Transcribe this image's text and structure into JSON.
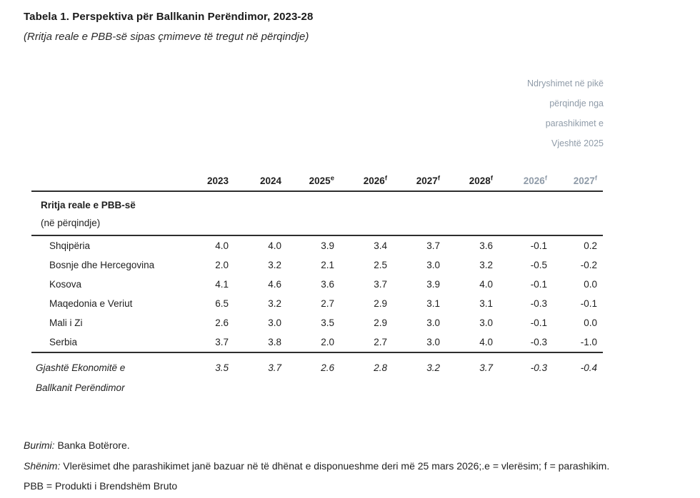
{
  "title": "Tabela 1. Perspektiva për Ballkanin Perëndimor, 2023-28",
  "subtitle": "(Rritja reale e PBB-së sipas çmimeve të tregut në përqindje)",
  "side_note": {
    "line1": "Ndryshimet në pikë",
    "line2": "përqindje nga",
    "line3": "parashikimet e",
    "line4": "Vjeshtë 2025"
  },
  "table": {
    "columns": [
      {
        "label": "2023",
        "sup": ""
      },
      {
        "label": "2024",
        "sup": ""
      },
      {
        "label": "2025",
        "sup": "e"
      },
      {
        "label": "2026",
        "sup": "f"
      },
      {
        "label": "2027",
        "sup": "f"
      },
      {
        "label": "2028",
        "sup": "f"
      },
      {
        "label": "2026",
        "sup": "f"
      },
      {
        "label": "2027",
        "sup": "f"
      }
    ],
    "section": {
      "line1": "Rritja reale e PBB-së",
      "line2": "(në përqindje)"
    },
    "rows": [
      {
        "label": "Shqipëria",
        "values": [
          "4.0",
          "4.0",
          "3.9",
          "3.4",
          "3.7",
          "3.6",
          "-0.1",
          "0.2"
        ]
      },
      {
        "label": "Bosnje dhe Hercegovina",
        "values": [
          "2.0",
          "3.2",
          "2.1",
          "2.5",
          "3.0",
          "3.2",
          "-0.5",
          "-0.2"
        ]
      },
      {
        "label": "Kosova",
        "values": [
          "4.1",
          "4.6",
          "3.6",
          "3.7",
          "3.9",
          "4.0",
          "-0.1",
          "0.0"
        ]
      },
      {
        "label": "Maqedonia e Veriut",
        "values": [
          "6.5",
          "3.2",
          "2.7",
          "2.9",
          "3.1",
          "3.1",
          "-0.3",
          "-0.1"
        ]
      },
      {
        "label": "Mali i Zi",
        "values": [
          "2.6",
          "3.0",
          "3.5",
          "2.9",
          "3.0",
          "3.0",
          "-0.1",
          "0.0"
        ]
      },
      {
        "label": "Serbia",
        "values": [
          "3.7",
          "3.8",
          "2.0",
          "2.7",
          "3.0",
          "4.0",
          "-0.3",
          "-1.0"
        ]
      }
    ],
    "summary": {
      "label_line1": "Gjashtë Ekonomitë e",
      "label_line2": "Ballkanit  Perëndimor",
      "values": [
        "3.5",
        "3.7",
        "2.6",
        "2.8",
        "3.2",
        "3.7",
        "-0.3",
        "-0.4"
      ]
    }
  },
  "footnotes": {
    "source_label": "Burimi:",
    "source_text": " Banka Botërore.",
    "note_label": "Shënim:",
    "note_text": " Vlerësimet dhe parashikimet janë bazuar në të dhënat e disponueshme deri më 25 mars 2026;.e = vlerësim; f = parashikim.",
    "abbr": "PBB = Produkti i Brendshëm Bruto"
  },
  "colors": {
    "text": "#1f1f1f",
    "muted_gray_blue": "#8f9ba8",
    "rule": "#2e2e2e",
    "background": "#ffffff"
  },
  "chart_data": {
    "type": "table",
    "title": "Tabela 1. Perspektiva për Ballkanin Perëndimor, 2023-28",
    "unit": "Rritja reale e PBB-së në përqindje",
    "categories": [
      "2023",
      "2024",
      "2025e",
      "2026f",
      "2027f",
      "2028f",
      "2026f (ndryshim nga Vjeshtë 2025)",
      "2027f (ndryshim nga Vjeshtë 2025)"
    ],
    "series": [
      {
        "name": "Shqipëria",
        "values": [
          4.0,
          4.0,
          3.9,
          3.4,
          3.7,
          3.6,
          -0.1,
          0.2
        ]
      },
      {
        "name": "Bosnje dhe Hercegovina",
        "values": [
          2.0,
          3.2,
          2.1,
          2.5,
          3.0,
          3.2,
          -0.5,
          -0.2
        ]
      },
      {
        "name": "Kosova",
        "values": [
          4.1,
          4.6,
          3.6,
          3.7,
          3.9,
          4.0,
          -0.1,
          0.0
        ]
      },
      {
        "name": "Maqedonia e Veriut",
        "values": [
          6.5,
          3.2,
          2.7,
          2.9,
          3.1,
          3.1,
          -0.3,
          -0.1
        ]
      },
      {
        "name": "Mali i Zi",
        "values": [
          2.6,
          3.0,
          3.5,
          2.9,
          3.0,
          3.0,
          -0.1,
          0.0
        ]
      },
      {
        "name": "Serbia",
        "values": [
          3.7,
          3.8,
          2.0,
          2.7,
          3.0,
          4.0,
          -0.3,
          -1.0
        ]
      },
      {
        "name": "Gjashtë Ekonomitë e Ballkanit Perëndimor",
        "values": [
          3.5,
          3.7,
          2.6,
          2.8,
          3.2,
          3.7,
          -0.3,
          -0.4
        ]
      }
    ]
  }
}
